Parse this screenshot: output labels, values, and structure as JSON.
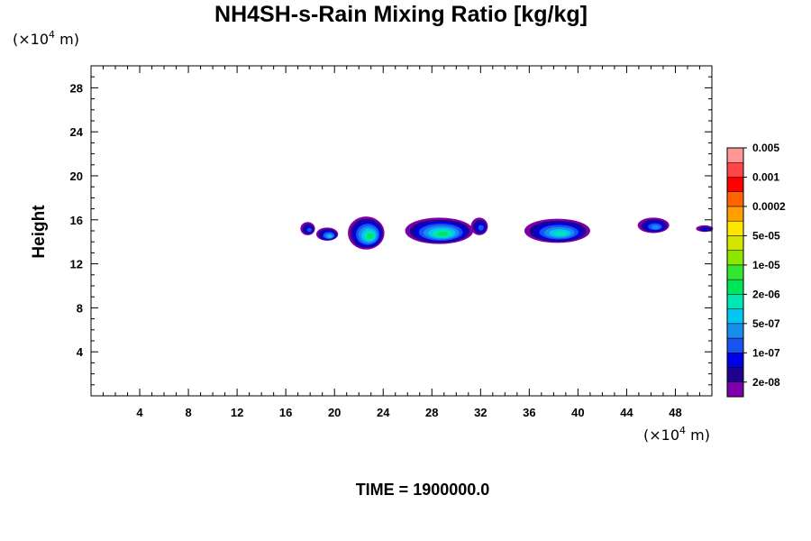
{
  "chart_data": {
    "type": "heatmap",
    "title": "NH4SH-s-Rain Mixing Ratio [kg/kg]",
    "ylabel": "Height",
    "xlabel": "",
    "x_unit": {
      "prefix": "(×10",
      "exp": "4",
      "suffix": " m)"
    },
    "y_unit": {
      "prefix": "(×10",
      "exp": "4",
      "suffix": " m)"
    },
    "xlim": [
      0,
      51
    ],
    "ylim": [
      0,
      30
    ],
    "x_ticks": [
      4,
      8,
      12,
      16,
      20,
      24,
      28,
      32,
      36,
      40,
      44,
      48
    ],
    "x_tick_labels": [
      "4",
      "8",
      "12",
      "16",
      "20",
      "24",
      "28",
      "32",
      "36",
      "40",
      "44",
      "48"
    ],
    "y_ticks": [
      4,
      8,
      12,
      16,
      20,
      24,
      28
    ],
    "y_tick_labels": [
      "4",
      "8",
      "12",
      "16",
      "20",
      "24",
      "28"
    ],
    "colorbar": {
      "colors": [
        "#7f00a8",
        "#1d008f",
        "#0000e6",
        "#1a54f0",
        "#1a8cf0",
        "#00c8f0",
        "#00e6b4",
        "#00e65a",
        "#32e632",
        "#8ce600",
        "#d2e600",
        "#ffe600",
        "#ffa000",
        "#ff6400",
        "#ff0000",
        "#ff4646",
        "#ff9696"
      ],
      "labels": [
        "2e-08",
        "1e-07",
        "5e-07",
        "2e-06",
        "1e-05",
        "5e-05",
        "0.0002",
        "0.001",
        "0.005"
      ]
    },
    "cells": [
      {
        "x": 17.8,
        "y": 15.2,
        "rx": 0.6,
        "ry": 0.6,
        "level": 3
      },
      {
        "x": 19.4,
        "y": 14.7,
        "rx": 0.9,
        "ry": 0.6,
        "level": 5
      },
      {
        "x": 22.6,
        "y": 14.8,
        "rx": 1.5,
        "ry": 1.5,
        "level": 7
      },
      {
        "x": 28.6,
        "y": 15.0,
        "rx": 2.8,
        "ry": 1.2,
        "level": 7
      },
      {
        "x": 31.9,
        "y": 15.4,
        "rx": 0.7,
        "ry": 0.8,
        "level": 3
      },
      {
        "x": 38.3,
        "y": 15.0,
        "rx": 2.7,
        "ry": 1.1,
        "level": 6
      },
      {
        "x": 46.2,
        "y": 15.5,
        "rx": 1.3,
        "ry": 0.7,
        "level": 4
      },
      {
        "x": 50.4,
        "y": 15.2,
        "rx": 0.7,
        "ry": 0.3,
        "level": 2
      }
    ],
    "footer": "TIME = 1900000.0"
  }
}
